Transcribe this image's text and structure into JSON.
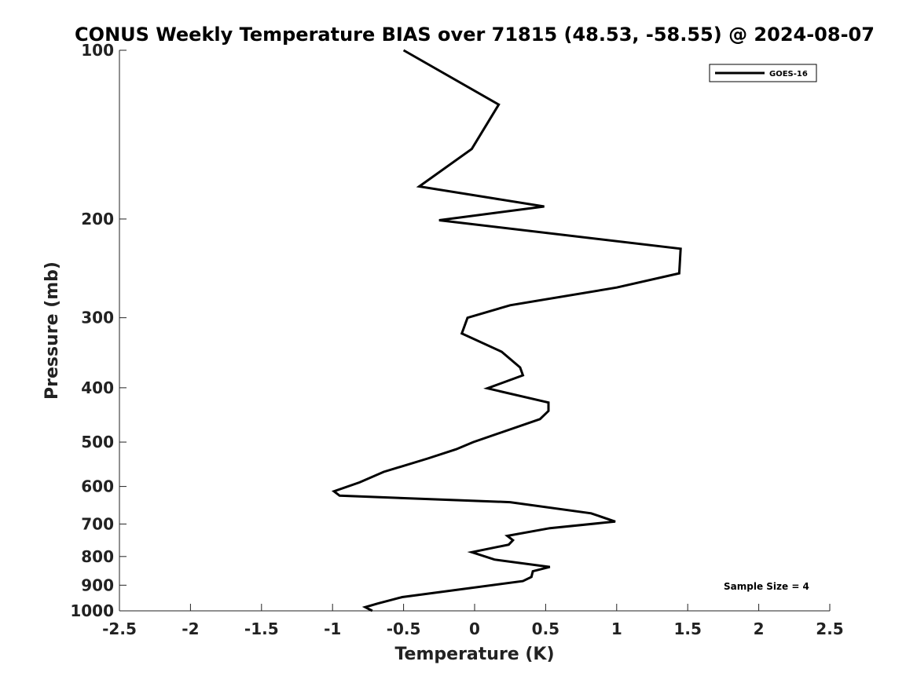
{
  "chart_data": {
    "type": "line",
    "title": "CONUS Weekly Temperature BIAS over 71815 (48.53, -58.55) @ 2024-08-07",
    "xlabel": "Temperature (K)",
    "ylabel": "Pressure (mb)",
    "xlim": [
      -2.5,
      2.5
    ],
    "ylim": [
      1000,
      100
    ],
    "yscale": "log",
    "xticks": [
      "-2.5",
      "-2",
      "-1.5",
      "-1",
      "-0.5",
      "0",
      "0.5",
      "1",
      "1.5",
      "2",
      "2.5"
    ],
    "yticks": [
      "100",
      "200",
      "300",
      "400",
      "500",
      "600",
      "700",
      "800",
      "900",
      "1000"
    ],
    "grid": false,
    "legend_position": "top-right",
    "annotation": "Sample Size = 4",
    "series": [
      {
        "name": "GOES-16",
        "color": "#000000",
        "points": [
          {
            "x": -0.5,
            "p": 100
          },
          {
            "x": 0.17,
            "p": 125
          },
          {
            "x": -0.02,
            "p": 150
          },
          {
            "x": -0.39,
            "p": 175
          },
          {
            "x": 0.49,
            "p": 190
          },
          {
            "x": -0.25,
            "p": 201
          },
          {
            "x": 1.45,
            "p": 226
          },
          {
            "x": 1.44,
            "p": 250
          },
          {
            "x": 1.0,
            "p": 265
          },
          {
            "x": 0.25,
            "p": 285
          },
          {
            "x": -0.05,
            "p": 300
          },
          {
            "x": -0.09,
            "p": 320
          },
          {
            "x": 0.19,
            "p": 345
          },
          {
            "x": 0.32,
            "p": 368
          },
          {
            "x": 0.34,
            "p": 380
          },
          {
            "x": 0.09,
            "p": 401
          },
          {
            "x": 0.52,
            "p": 425
          },
          {
            "x": 0.52,
            "p": 440
          },
          {
            "x": 0.46,
            "p": 455
          },
          {
            "x": -0.01,
            "p": 500
          },
          {
            "x": -0.13,
            "p": 515
          },
          {
            "x": -0.33,
            "p": 535
          },
          {
            "x": -0.64,
            "p": 565
          },
          {
            "x": -0.81,
            "p": 590
          },
          {
            "x": -0.99,
            "p": 612
          },
          {
            "x": -0.95,
            "p": 623
          },
          {
            "x": 0.25,
            "p": 640
          },
          {
            "x": 0.82,
            "p": 670
          },
          {
            "x": 0.99,
            "p": 693
          },
          {
            "x": 0.53,
            "p": 712
          },
          {
            "x": 0.23,
            "p": 735
          },
          {
            "x": 0.27,
            "p": 748
          },
          {
            "x": 0.24,
            "p": 762
          },
          {
            "x": -0.02,
            "p": 786
          },
          {
            "x": 0.14,
            "p": 810
          },
          {
            "x": 0.53,
            "p": 835
          },
          {
            "x": 0.41,
            "p": 850
          },
          {
            "x": 0.4,
            "p": 870
          },
          {
            "x": 0.34,
            "p": 885
          },
          {
            "x": -0.51,
            "p": 945
          },
          {
            "x": -0.68,
            "p": 970
          },
          {
            "x": -0.77,
            "p": 985
          },
          {
            "x": -0.72,
            "p": 1000
          }
        ]
      }
    ]
  }
}
